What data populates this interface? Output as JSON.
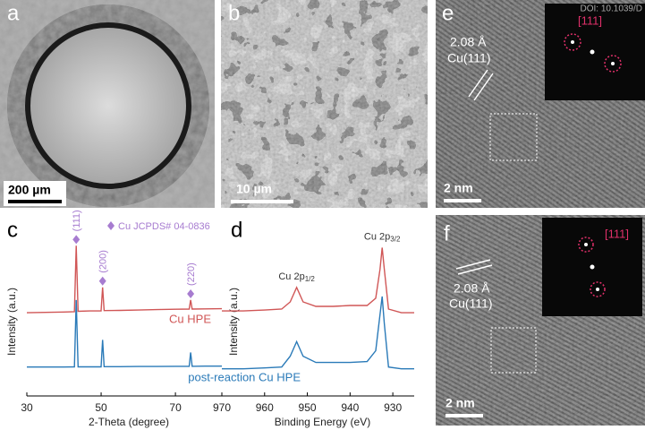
{
  "header": {
    "doi": "DOI: 10.1039/D"
  },
  "panels": {
    "a": {
      "label": "a",
      "scale_bar": "200 µm"
    },
    "b": {
      "label": "b",
      "scale_bar": "10 µm"
    },
    "e": {
      "label": "e",
      "spacing": "2.08 Å",
      "plane": "Cu(111)",
      "fft_label": "[111]",
      "scale_bar": "2 nm"
    },
    "f": {
      "label": "f",
      "spacing": "2.08 Å",
      "plane": "Cu(111)",
      "fft_label": "[111]",
      "scale_bar": "2 nm"
    }
  },
  "chart_data": [
    {
      "type": "line",
      "panel_label": "c",
      "xlabel": "2-Theta (degree)",
      "ylabel": "Intensity (a.u.)",
      "legend": "Cu  JCPDS# 04-0836",
      "xlim": [
        30,
        82.5
      ],
      "xticks": [
        30,
        50,
        70
      ],
      "ylim": [
        0,
        100
      ],
      "x": [
        30,
        35,
        40,
        42.8,
        43.3,
        43.8,
        47,
        50.0,
        50.4,
        50.8,
        55,
        60,
        65,
        70,
        73.7,
        74.1,
        74.5,
        78,
        82.5
      ],
      "series": [
        {
          "name": "Cu HPE",
          "color": "#d05656",
          "values": [
            46,
            46.2,
            46.4,
            46.6,
            83,
            46.8,
            47,
            47,
            60,
            47.2,
            47.3,
            47.5,
            47.7,
            47.9,
            48,
            53,
            48,
            48.1,
            48.2
          ]
        },
        {
          "name": "post-reaction Cu HPE",
          "color": "#2a7ab8",
          "values": [
            16,
            16,
            16,
            16.1,
            53,
            16.1,
            16.1,
            16.1,
            31,
            16.2,
            16.2,
            16.3,
            16.3,
            16.4,
            16.4,
            24,
            16.4,
            16.5,
            16.5
          ]
        }
      ],
      "annotations": [
        {
          "text": "(111)",
          "x": 43.3
        },
        {
          "text": "(200)",
          "x": 50.4
        },
        {
          "text": "(220)",
          "x": 74.1
        }
      ],
      "annotation_color": "#a77cd0"
    },
    {
      "type": "line",
      "panel_label": "d",
      "xlabel": "Binding Energy (eV)",
      "ylabel": "Intensity (a.u.)",
      "xlim": [
        970,
        925
      ],
      "xticks": [
        970,
        960,
        950,
        940,
        930
      ],
      "ylim": [
        0,
        100
      ],
      "x": [
        970,
        965,
        960,
        956,
        954,
        952.5,
        951,
        948,
        944,
        940,
        936,
        934,
        933,
        932.5,
        932,
        931,
        928,
        925
      ],
      "series": [
        {
          "color": "#d05656",
          "values": [
            47,
            47,
            47.5,
            48,
            52,
            60,
            52,
            49.5,
            49.5,
            50,
            50,
            54,
            70,
            82,
            70,
            48,
            46,
            46
          ]
        },
        {
          "color": "#2a7ab8",
          "values": [
            15,
            15,
            15.5,
            16,
            22,
            30,
            22,
            18.5,
            18.5,
            18.5,
            19,
            25,
            45,
            55,
            40,
            16,
            15,
            15
          ]
        }
      ],
      "annotations": [
        {
          "text": "Cu 2p",
          "sub": "1/2",
          "x": 952.5
        },
        {
          "text": "Cu 2p",
          "sub": "3/2",
          "x": 932.5
        }
      ],
      "annotation_color": "#333333"
    }
  ]
}
